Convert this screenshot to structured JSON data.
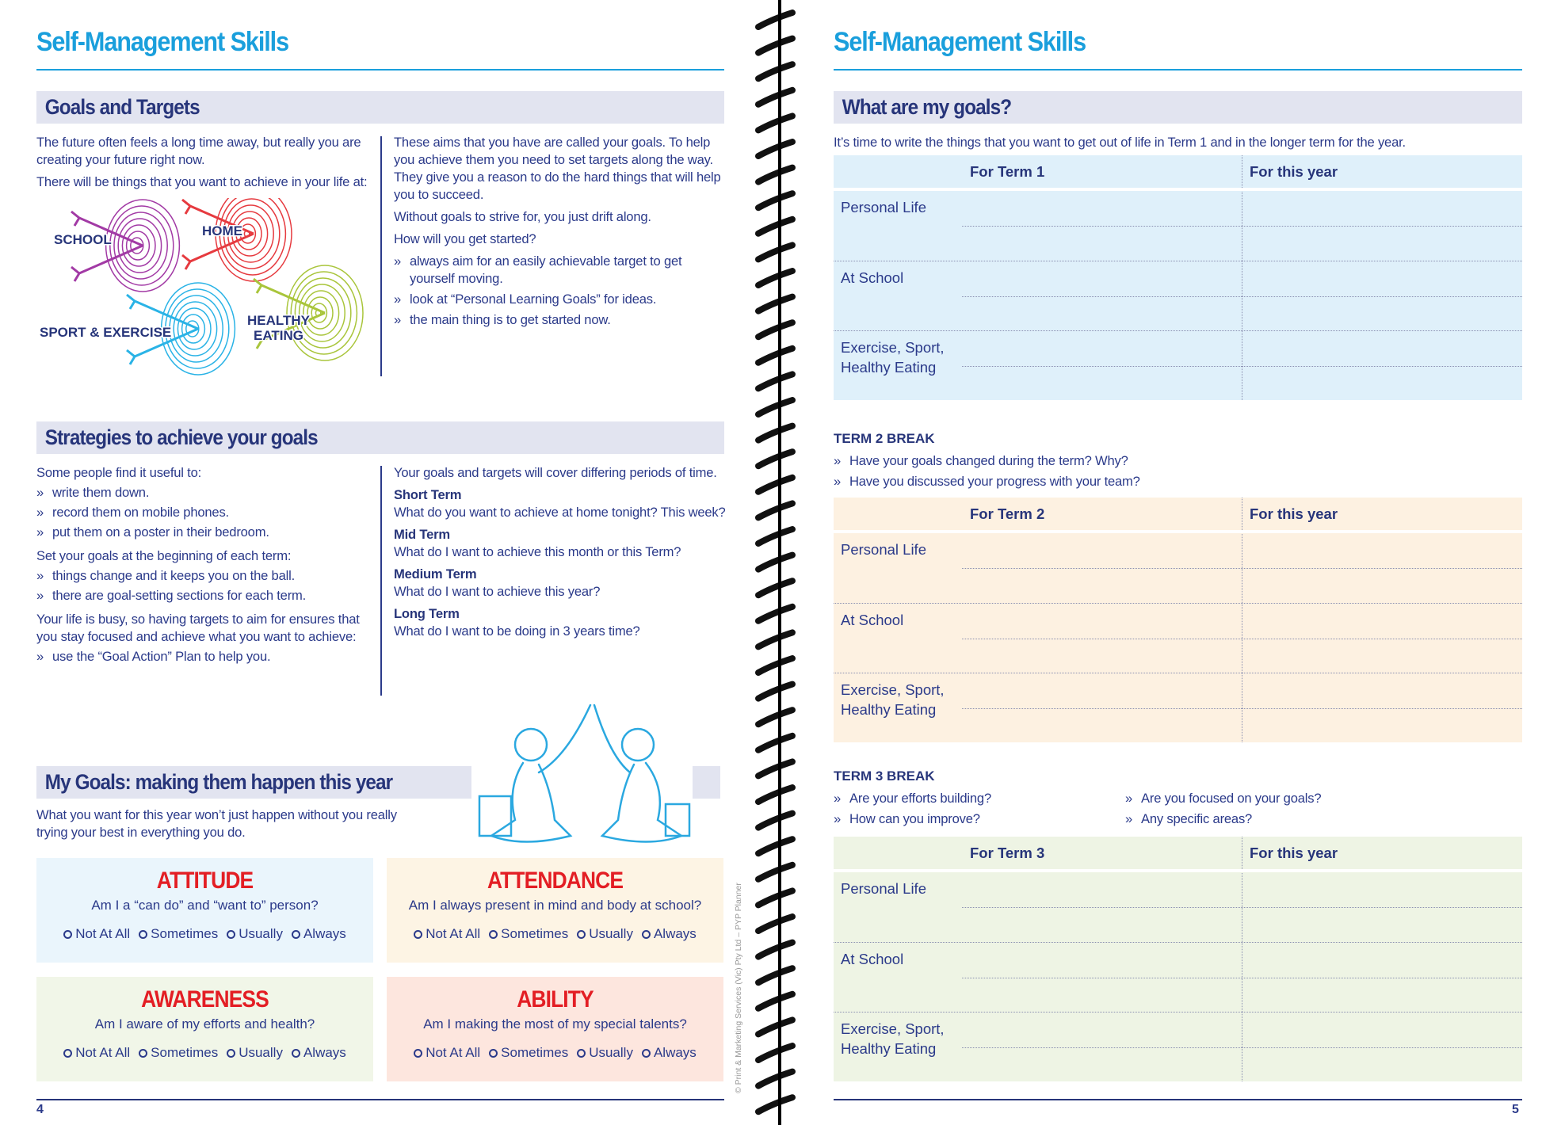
{
  "left": {
    "title": "Self-Management Skills",
    "goals_targets": {
      "heading": "Goals and Targets",
      "col1": [
        "The future often feels a long time away, but really you are creating your future right now.",
        "There will be things that you want to achieve in your life at:"
      ],
      "targets": [
        {
          "label": "SCHOOL",
          "color": "#a23aa5"
        },
        {
          "label": "HOME",
          "color": "#e63a3f"
        },
        {
          "label": "SPORT & EXERCISE",
          "color": "#2ab3e6"
        },
        {
          "label": "HEALTHY EATING",
          "color": "#a9c53b"
        }
      ],
      "col2": [
        "These aims that you have are called your goals. To help you achieve them you need to set targets along the way. They give you a reason to do the hard things that will help you to succeed.",
        "Without goals to strive for, you just drift along.",
        "How will you get started?"
      ],
      "col2_bullets": [
        "always aim for an easily achievable target to get yourself moving.",
        "look at “Personal Learning Goals” for ideas.",
        "the main thing is to get started now."
      ]
    },
    "strategies": {
      "heading": "Strategies to achieve your goals",
      "intro1": "Some people find it useful to:",
      "bullets1": [
        "write them down.",
        "record them on mobile phones.",
        "put them on a poster in their bedroom."
      ],
      "intro2": "Set your goals at the beginning of each term:",
      "bullets2": [
        "things change and it keeps you on the ball.",
        "there are goal-setting sections for each term."
      ],
      "intro3": "Your life is busy, so having targets to aim for ensures that you stay focused and achieve what you want to achieve:",
      "bullets3": [
        "use the “Goal Action” Plan to help you."
      ],
      "col2_intro": "Your goals and targets will cover differing periods of time.",
      "terms": [
        {
          "name": "Short Term",
          "text": "What do you want to achieve at home tonight? This week?"
        },
        {
          "name": "Mid Term",
          "text": "What do I want to achieve this month or this Term?"
        },
        {
          "name": "Medium Term",
          "text": "What do I want to achieve this year?"
        },
        {
          "name": "Long Term",
          "text": "What do I want to be doing in 3 years time?"
        }
      ]
    },
    "my_goals": {
      "heading": "My Goals: making them happen this year",
      "text": "What you want for this year won’t just happen without you really trying your best in everything you do."
    },
    "options": [
      "Not At All",
      "Sometimes",
      "Usually",
      "Always"
    ],
    "boxes": [
      {
        "title": "ATTITUDE",
        "question": "Am I a “can do” and “want to” person?",
        "bg": "#eaf5fc"
      },
      {
        "title": "ATTENDANCE",
        "question": "Am I always present in mind and body at school?",
        "bg": "#fdf4e4"
      },
      {
        "title": "AWARENESS",
        "question": "Am I aware of my efforts and health?",
        "bg": "#f1f6e8"
      },
      {
        "title": "ABILITY",
        "question": "Am I making the most of my special talents?",
        "bg": "#fde6de"
      }
    ],
    "copyright": "© Print & Marketing Services (Vic) Pty Ltd – PYP Planner",
    "page_number": "4"
  },
  "right": {
    "title": "Self-Management Skills",
    "heading": "What are my goals?",
    "intro": "It’s time to write the things that you want to get out of life in Term 1 and in the longer term for the year.",
    "row_labels": [
      "Personal Life",
      "At School",
      "Exercise, Sport, Healthy Eating"
    ],
    "tables": [
      {
        "col1": "For Term 1",
        "col2": "For this year",
        "bg": "#dff0fa"
      },
      {
        "col1": "For Term 2",
        "col2": "For this year",
        "bg": "#fdf1e1"
      },
      {
        "col1": "For Term 3",
        "col2": "For this year",
        "bg": "#eef4e4"
      }
    ],
    "term2_break": {
      "title": "TERM 2 BREAK",
      "bullets": [
        "Have your goals changed during the term? Why?",
        "Have you discussed your progress with your team?"
      ]
    },
    "term3_break": {
      "title": "TERM 3 BREAK",
      "bullets": [
        "Are your efforts building?",
        "How can you improve?",
        "Are you focused on your goals?",
        "Any specific areas?"
      ]
    },
    "page_number": "5"
  }
}
